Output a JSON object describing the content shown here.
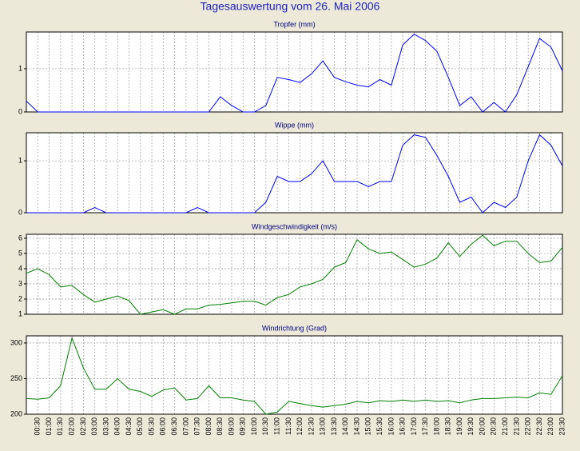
{
  "title": "Tagesauswertung vom 26. Mai 2006",
  "chart_data": [
    {
      "type": "line",
      "title": "Tropfer (mm)",
      "color": "#0000ff",
      "ylim": [
        0,
        1.85
      ],
      "yticks": [
        0,
        1
      ],
      "grid": true,
      "values": [
        0.25,
        0,
        0,
        0,
        0,
        0,
        0,
        0,
        0,
        0,
        0,
        0,
        0,
        0,
        0,
        0,
        0,
        0.35,
        0.15,
        0,
        0,
        0.15,
        0.8,
        0.75,
        0.68,
        0.88,
        1.18,
        0.8,
        0.7,
        0.62,
        0.58,
        0.75,
        0.62,
        1.55,
        1.8,
        1.65,
        1.4,
        0.8,
        0.15,
        0.35,
        0,
        0.22,
        0,
        0.4,
        1.05,
        1.7,
        1.5,
        0.95
      ]
    },
    {
      "type": "line",
      "title": "Wippe (mm)",
      "color": "#0000ff",
      "ylim": [
        0,
        1.54
      ],
      "yticks": [
        0,
        1
      ],
      "grid": true,
      "values": [
        0,
        0,
        0,
        0,
        0,
        0,
        0.1,
        0,
        0,
        0,
        0,
        0,
        0,
        0,
        0,
        0.1,
        0,
        0,
        0,
        0,
        0,
        0.2,
        0.7,
        0.6,
        0.6,
        0.75,
        1.0,
        0.6,
        0.6,
        0.6,
        0.5,
        0.6,
        0.6,
        1.3,
        1.5,
        1.45,
        1.1,
        0.7,
        0.2,
        0.3,
        0,
        0.2,
        0.1,
        0.3,
        1.0,
        1.5,
        1.3,
        0.9
      ]
    },
    {
      "type": "line",
      "title": "Windgeschwindigkeit (m/s)",
      "color": "#008000",
      "ylim": [
        1,
        6.26
      ],
      "yticks": [
        1,
        2,
        3,
        4,
        5,
        6
      ],
      "grid": true,
      "values": [
        3.7,
        4.0,
        3.6,
        2.8,
        2.9,
        2.3,
        1.8,
        2.0,
        2.2,
        1.9,
        1.0,
        1.15,
        1.3,
        1.0,
        1.35,
        1.35,
        1.6,
        1.65,
        1.75,
        1.85,
        1.85,
        1.6,
        2.1,
        2.3,
        2.8,
        3.0,
        3.3,
        4.1,
        4.4,
        5.9,
        5.3,
        5.0,
        5.1,
        4.6,
        4.1,
        4.3,
        4.7,
        5.7,
        4.8,
        5.6,
        6.2,
        5.5,
        5.8,
        5.8,
        5.0,
        4.4,
        4.5,
        5.4
      ]
    },
    {
      "type": "line",
      "title": "Windrichtung (Grad)",
      "color": "#008000",
      "ylim": [
        200,
        310
      ],
      "yticks": [
        200,
        250,
        300
      ],
      "grid": true,
      "categories": [
        null,
        "00:30",
        "01:00",
        "01:30",
        "02:00",
        "02:30",
        "03:00",
        "03:30",
        "04:00",
        "04:30",
        "05:00",
        "05:30",
        "06:00",
        "06:30",
        "07:00",
        "07:30",
        "08:00",
        "08:30",
        "09:00",
        "09:30",
        "10:00",
        "10:30",
        "11:00",
        "11:30",
        "12:00",
        "12:30",
        "13:00",
        "13:30",
        "14:00",
        "14:30",
        "15:00",
        "15:30",
        "16:00",
        "16:30",
        "17:00",
        "17:30",
        "18:00",
        "18:30",
        "19:00",
        "19:30",
        "20:00",
        "20:30",
        "21:00",
        "21:30",
        "22:00",
        "22:30",
        "23:00",
        "23:30"
      ],
      "values": [
        222,
        221,
        223,
        240,
        307,
        265,
        235,
        235,
        250,
        235,
        232,
        225,
        234,
        237,
        220,
        222,
        240,
        223,
        223,
        220,
        218,
        200,
        203,
        218,
        215,
        212,
        210,
        212,
        214,
        218,
        216,
        219,
        218,
        220,
        218,
        220,
        218,
        219,
        216,
        220,
        222,
        222,
        223,
        224,
        223,
        230,
        228,
        254
      ]
    }
  ]
}
